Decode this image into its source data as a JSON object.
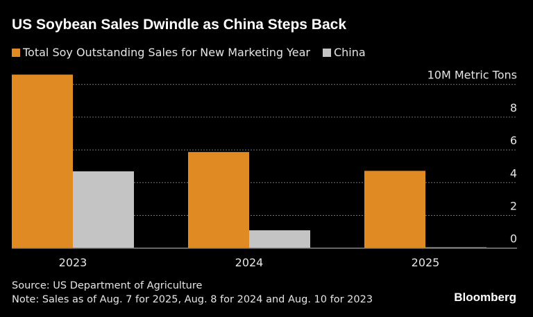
{
  "title": "US Soybean Sales Dwindle as China Steps Back",
  "colors": {
    "total": "#e08a24",
    "china": "#c4c4c4",
    "background": "#000000"
  },
  "chart_data": {
    "type": "bar",
    "title": "US Soybean Sales Dwindle as China Steps Back",
    "ylabel": "10M Metric Tons",
    "categories": [
      "2023",
      "2024",
      "2025"
    ],
    "series": [
      {
        "name": "Total Soy Outstanding Sales for New Marketing Year",
        "values": [
          10.6,
          5.87,
          4.72
        ]
      },
      {
        "name": "China",
        "values": [
          4.69,
          1.09,
          0.05
        ]
      }
    ],
    "ylim": [
      0,
      10
    ],
    "yticks": [
      "0",
      "2",
      "4",
      "6",
      "8"
    ],
    "grid": true,
    "legend": "top-left"
  },
  "footer": {
    "source": "Source: US Department of Agriculture",
    "note": "Note: Sales as of Aug. 7 for 2025, Aug. 8 for 2024 and Aug. 10 for 2023",
    "brand": "Bloomberg"
  }
}
